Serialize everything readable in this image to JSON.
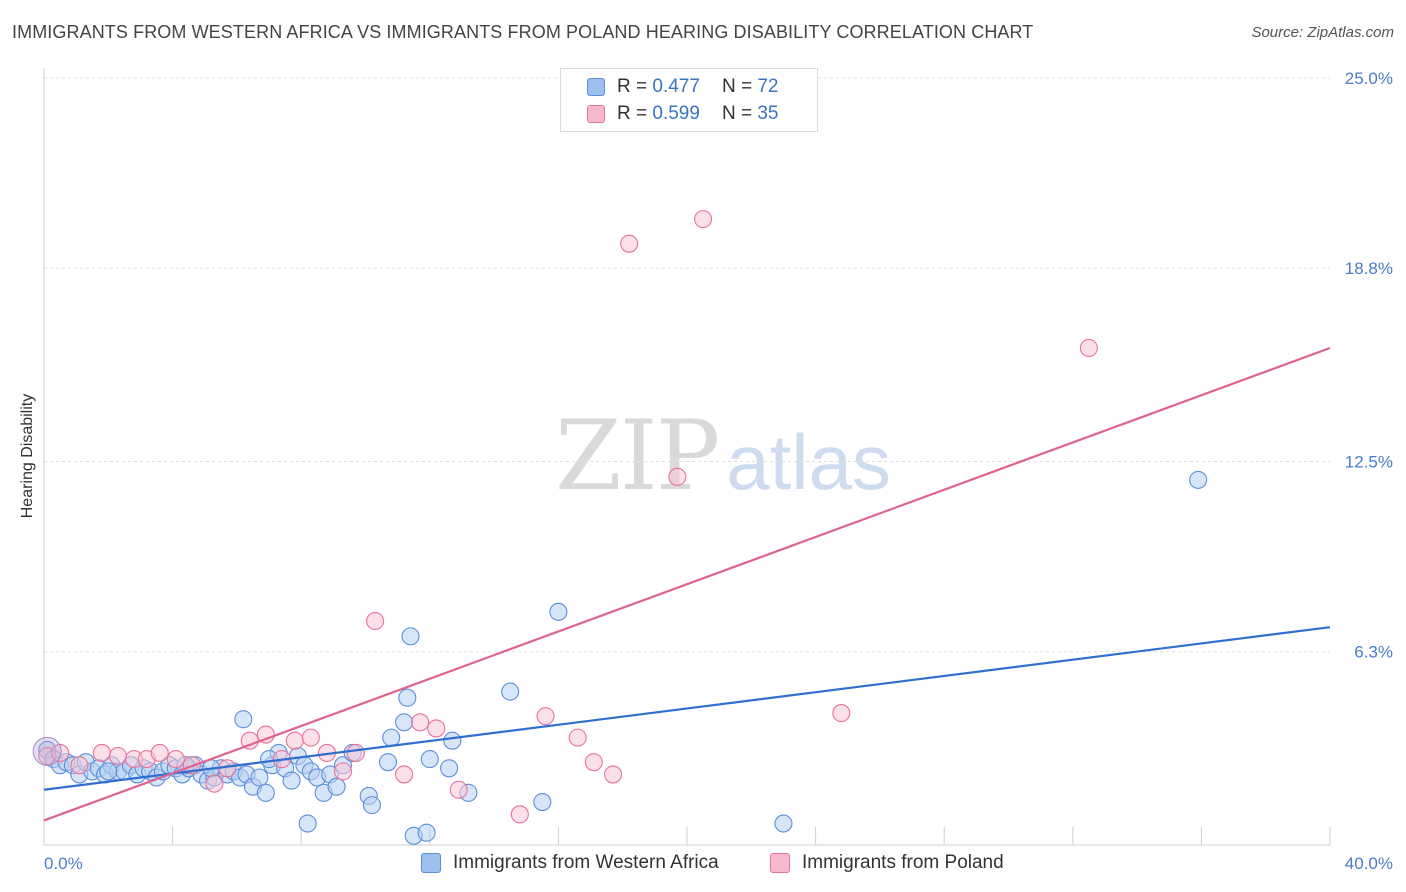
{
  "title": "IMMIGRANTS FROM WESTERN AFRICA VS IMMIGRANTS FROM POLAND HEARING DISABILITY CORRELATION CHART",
  "source": "Source: ZipAtlas.com",
  "watermark": {
    "zip": "ZIP",
    "atlas": "atlas"
  },
  "legend": {
    "rows": [
      {
        "r_label": "R =",
        "r_value": "0.477",
        "n_label": "N =",
        "n_value": "72",
        "color": "#9dbfee"
      },
      {
        "r_label": "R =",
        "r_value": "0.599",
        "n_label": "N =",
        "n_value": "35",
        "color": "#f6b8cb"
      }
    ]
  },
  "chart_data": {
    "type": "scatter",
    "title": "IMMIGRANTS FROM WESTERN AFRICA VS IMMIGRANTS FROM POLAND HEARING DISABILITY CORRELATION CHART",
    "xlabel": "",
    "ylabel": "Hearing Disability",
    "xlim": [
      0,
      40
    ],
    "ylim": [
      0,
      25
    ],
    "x_tick_labels": [
      "0.0%",
      "40.0%"
    ],
    "y_ticks": [
      6.3,
      12.5,
      18.8,
      25.0
    ],
    "y_tick_labels": [
      "6.3%",
      "12.5%",
      "18.8%",
      "25.0%"
    ],
    "grid": true,
    "legend_position": "top-center",
    "series": [
      {
        "name": "Immigrants from Western Africa",
        "color": "#5b8fd9",
        "fill": "#b7d0f2",
        "trend": {
          "x": [
            0,
            40
          ],
          "y": [
            1.8,
            7.1
          ]
        },
        "points": [
          [
            0.1,
            3.1
          ],
          [
            0.3,
            2.8
          ],
          [
            0.5,
            2.6
          ],
          [
            0.7,
            2.7
          ],
          [
            0.9,
            2.6
          ],
          [
            1.1,
            2.3
          ],
          [
            1.3,
            2.7
          ],
          [
            1.5,
            2.4
          ],
          [
            1.7,
            2.5
          ],
          [
            1.9,
            2.3
          ],
          [
            2.1,
            2.6
          ],
          [
            2.3,
            2.4
          ],
          [
            2.5,
            2.4
          ],
          [
            2.7,
            2.6
          ],
          [
            2.9,
            2.3
          ],
          [
            3.1,
            2.5
          ],
          [
            3.3,
            2.4
          ],
          [
            3.5,
            2.2
          ],
          [
            3.7,
            2.4
          ],
          [
            3.9,
            2.6
          ],
          [
            4.1,
            2.5
          ],
          [
            4.3,
            2.3
          ],
          [
            4.5,
            2.5
          ],
          [
            4.7,
            2.6
          ],
          [
            4.9,
            2.3
          ],
          [
            5.1,
            2.1
          ],
          [
            5.3,
            2.2
          ],
          [
            5.5,
            2.5
          ],
          [
            5.7,
            2.3
          ],
          [
            5.9,
            2.4
          ],
          [
            6.1,
            2.2
          ],
          [
            6.3,
            2.3
          ],
          [
            6.5,
            1.9
          ],
          [
            6.7,
            2.2
          ],
          [
            6.9,
            1.7
          ],
          [
            7.1,
            2.6
          ],
          [
            7.3,
            3.0
          ],
          [
            7.5,
            2.5
          ],
          [
            7.7,
            2.1
          ],
          [
            7.9,
            2.9
          ],
          [
            8.1,
            2.6
          ],
          [
            8.3,
            2.4
          ],
          [
            8.5,
            2.2
          ],
          [
            8.7,
            1.7
          ],
          [
            8.9,
            2.3
          ],
          [
            9.1,
            1.9
          ],
          [
            9.3,
            2.6
          ],
          [
            9.6,
            3.0
          ],
          [
            10.1,
            1.6
          ],
          [
            10.2,
            1.3
          ],
          [
            10.7,
            2.7
          ],
          [
            10.8,
            3.5
          ],
          [
            11.2,
            4.0
          ],
          [
            11.3,
            4.8
          ],
          [
            11.4,
            6.8
          ],
          [
            11.5,
            0.3
          ],
          [
            11.9,
            0.4
          ],
          [
            12.0,
            2.8
          ],
          [
            12.6,
            2.5
          ],
          [
            12.7,
            3.4
          ],
          [
            13.2,
            1.7
          ],
          [
            14.5,
            5.0
          ],
          [
            15.5,
            1.4
          ],
          [
            16.0,
            7.6
          ],
          [
            7.0,
            2.8
          ],
          [
            8.2,
            0.7
          ],
          [
            4.4,
            2.6
          ],
          [
            5.2,
            2.5
          ],
          [
            6.2,
            4.1
          ],
          [
            2.0,
            2.4
          ],
          [
            23.0,
            0.7
          ],
          [
            35.9,
            11.9
          ]
        ]
      },
      {
        "name": "Immigrants from Poland",
        "color": "#e8729b",
        "fill": "#f8c6d6",
        "trend": {
          "x": [
            0,
            40
          ],
          "y": [
            0.8,
            16.2
          ]
        },
        "points": [
          [
            0.1,
            2.9
          ],
          [
            0.5,
            3.0
          ],
          [
            1.1,
            2.6
          ],
          [
            1.8,
            3.0
          ],
          [
            2.3,
            2.9
          ],
          [
            2.8,
            2.8
          ],
          [
            3.2,
            2.8
          ],
          [
            3.6,
            3.0
          ],
          [
            4.1,
            2.8
          ],
          [
            4.6,
            2.6
          ],
          [
            5.3,
            2.0
          ],
          [
            5.7,
            2.5
          ],
          [
            6.4,
            3.4
          ],
          [
            6.9,
            3.6
          ],
          [
            7.4,
            2.8
          ],
          [
            7.8,
            3.4
          ],
          [
            8.3,
            3.5
          ],
          [
            8.8,
            3.0
          ],
          [
            9.3,
            2.4
          ],
          [
            9.7,
            3.0
          ],
          [
            10.3,
            7.3
          ],
          [
            11.2,
            2.3
          ],
          [
            11.7,
            4.0
          ],
          [
            12.2,
            3.8
          ],
          [
            12.9,
            1.8
          ],
          [
            14.8,
            1.0
          ],
          [
            15.6,
            4.2
          ],
          [
            16.6,
            3.5
          ],
          [
            17.1,
            2.7
          ],
          [
            17.7,
            2.3
          ],
          [
            18.2,
            19.6
          ],
          [
            19.7,
            12.0
          ],
          [
            20.5,
            20.4
          ],
          [
            24.8,
            4.3
          ],
          [
            32.5,
            16.2
          ]
        ]
      }
    ]
  }
}
